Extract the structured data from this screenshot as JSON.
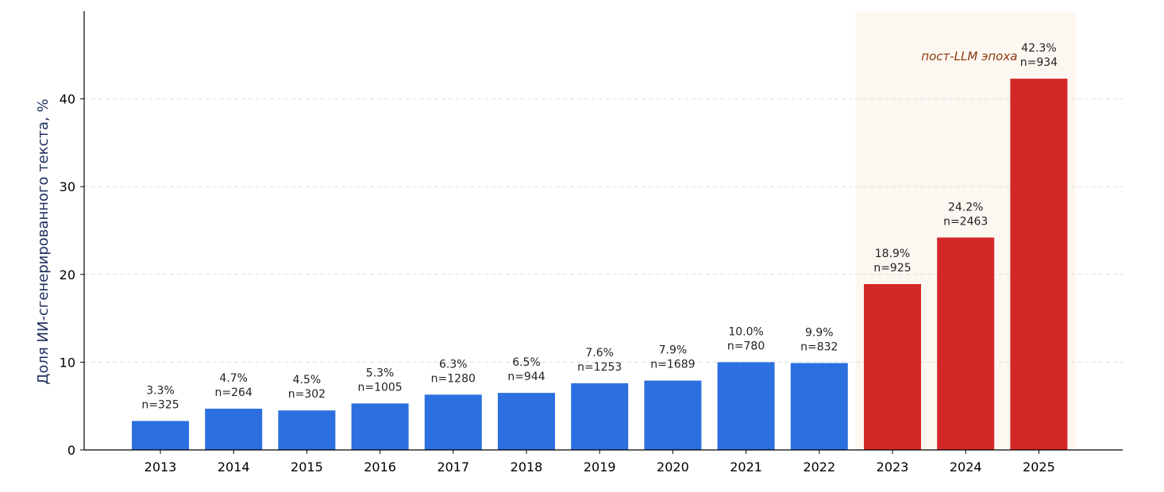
{
  "chart_data": {
    "type": "bar",
    "categories": [
      "2013",
      "2014",
      "2015",
      "2016",
      "2017",
      "2018",
      "2019",
      "2020",
      "2021",
      "2022",
      "2023",
      "2024",
      "2025"
    ],
    "values": [
      3.3,
      4.7,
      4.5,
      5.3,
      6.3,
      6.5,
      7.6,
      7.9,
      10.0,
      9.9,
      18.9,
      24.2,
      42.3
    ],
    "value_labels": [
      "3.3%",
      "4.7%",
      "4.5%",
      "5.3%",
      "6.3%",
      "6.5%",
      "7.6%",
      "7.9%",
      "10.0%",
      "9.9%",
      "18.9%",
      "24.2%",
      "42.3%"
    ],
    "n_labels": [
      "n=325",
      "n=264",
      "n=302",
      "n=1005",
      "n=1280",
      "n=944",
      "n=1253",
      "n=1689",
      "n=780",
      "n=832",
      "n=925",
      "n=2463",
      "n=934"
    ],
    "ylabel": "Доля ИИ-сгенерированного текста, %",
    "xlabel": "",
    "ylim": [
      0,
      50
    ],
    "yticks": [
      0,
      10,
      20,
      30,
      40
    ],
    "grid": true,
    "highlight": {
      "label": "пост-LLM эпоха",
      "categories": [
        "2023",
        "2024",
        "2025"
      ]
    },
    "colors": {
      "pre": "#2c6fdf",
      "post": "#d42828",
      "highlight_bg": "#fdf7f1",
      "annotation": "#8b3a0f",
      "ylabel": "#1f2f5e",
      "grid": "#dddddd"
    }
  }
}
